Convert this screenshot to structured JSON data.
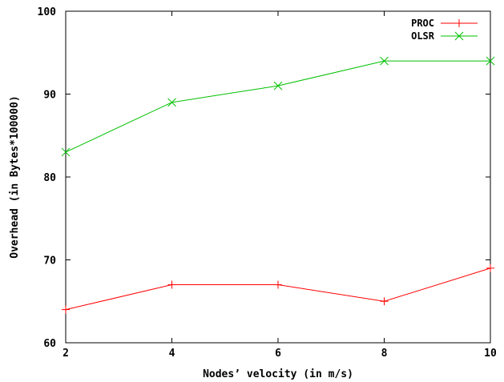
{
  "chart_data": {
    "type": "line",
    "title": "",
    "xlabel": "Nodes’ velocity (in m/s)",
    "ylabel": "Overhead (in Bytes*100000)",
    "xlim": [
      2,
      10
    ],
    "ylim": [
      60,
      100
    ],
    "x_ticks": [
      "2",
      "4",
      "6",
      "8",
      "10"
    ],
    "y_ticks": [
      "60",
      "70",
      "80",
      "90",
      "100"
    ],
    "grid": false,
    "legend_position": "top-right",
    "x": [
      2,
      4,
      6,
      8,
      10
    ],
    "series": [
      {
        "name": "PROC",
        "values": [
          64,
          67,
          67,
          65,
          69
        ],
        "color": "#ff0000",
        "marker": "plus"
      },
      {
        "name": "OLSR",
        "values": [
          83,
          89,
          91,
          94,
          94
        ],
        "color": "#00c000",
        "marker": "cross"
      }
    ]
  }
}
